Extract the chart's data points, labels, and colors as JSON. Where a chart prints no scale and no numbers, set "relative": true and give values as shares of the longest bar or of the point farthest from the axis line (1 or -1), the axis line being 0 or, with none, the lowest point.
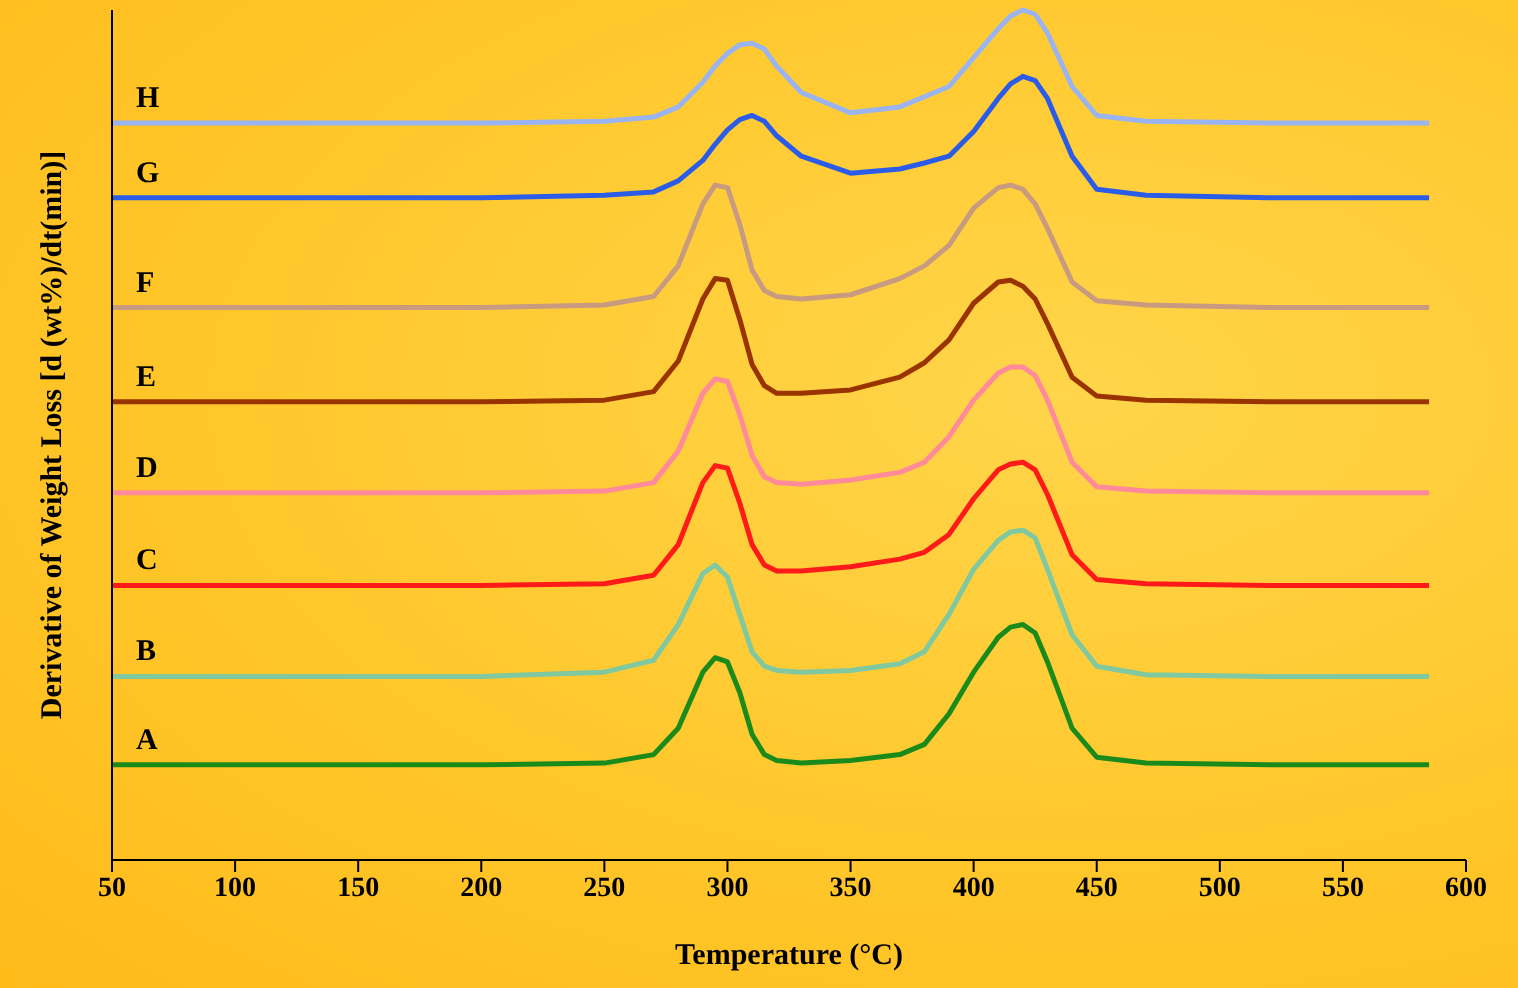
{
  "chart_data": {
    "type": "line",
    "relative": true,
    "xlabel": "Temperature (°C)",
    "ylabel": "Derivative of Weight Loss [d (wt%)/dt(min)]",
    "xlim": [
      50,
      600
    ],
    "xticks": [
      50,
      100,
      150,
      200,
      250,
      300,
      350,
      400,
      450,
      500,
      550,
      600
    ],
    "marker": "none",
    "line_style": "solid",
    "grid": false,
    "legend": false,
    "x": [
      50,
      100,
      150,
      200,
      250,
      270,
      280,
      290,
      295,
      300,
      305,
      310,
      315,
      320,
      330,
      350,
      370,
      380,
      390,
      400,
      410,
      415,
      420,
      425,
      430,
      440,
      450,
      470,
      520,
      585
    ],
    "series": [
      {
        "name": "A",
        "color": "#1a8a1a",
        "values": [
          0.112,
          0.112,
          0.112,
          0.112,
          0.114,
          0.124,
          0.155,
          0.221,
          0.238,
          0.233,
          0.197,
          0.148,
          0.124,
          0.117,
          0.114,
          0.117,
          0.124,
          0.136,
          0.172,
          0.221,
          0.262,
          0.274,
          0.277,
          0.267,
          0.233,
          0.155,
          0.121,
          0.114,
          0.112,
          0.112
        ]
      },
      {
        "name": "B",
        "color": "#7fc8a0",
        "values": [
          0.216,
          0.216,
          0.216,
          0.216,
          0.221,
          0.235,
          0.277,
          0.337,
          0.347,
          0.333,
          0.289,
          0.245,
          0.228,
          0.223,
          0.221,
          0.223,
          0.231,
          0.245,
          0.289,
          0.342,
          0.376,
          0.386,
          0.388,
          0.379,
          0.342,
          0.265,
          0.228,
          0.218,
          0.216,
          0.216
        ]
      },
      {
        "name": "C",
        "color": "#ff1a1a",
        "values": [
          0.323,
          0.323,
          0.323,
          0.323,
          0.325,
          0.335,
          0.371,
          0.444,
          0.464,
          0.461,
          0.42,
          0.371,
          0.347,
          0.34,
          0.34,
          0.345,
          0.354,
          0.362,
          0.383,
          0.425,
          0.459,
          0.466,
          0.468,
          0.459,
          0.43,
          0.359,
          0.33,
          0.325,
          0.323,
          0.323
        ]
      },
      {
        "name": "D",
        "color": "#ff8a9a",
        "values": [
          0.432,
          0.432,
          0.432,
          0.432,
          0.434,
          0.444,
          0.481,
          0.549,
          0.566,
          0.563,
          0.524,
          0.476,
          0.451,
          0.444,
          0.442,
          0.447,
          0.456,
          0.468,
          0.498,
          0.541,
          0.573,
          0.58,
          0.58,
          0.57,
          0.541,
          0.468,
          0.439,
          0.434,
          0.432,
          0.432
        ]
      },
      {
        "name": "E",
        "color": "#993300",
        "values": [
          0.539,
          0.539,
          0.539,
          0.539,
          0.541,
          0.551,
          0.587,
          0.66,
          0.684,
          0.682,
          0.636,
          0.583,
          0.558,
          0.549,
          0.549,
          0.553,
          0.568,
          0.585,
          0.612,
          0.655,
          0.68,
          0.682,
          0.675,
          0.66,
          0.631,
          0.568,
          0.546,
          0.541,
          0.539,
          0.539
        ]
      },
      {
        "name": "F",
        "color": "#c89a80",
        "values": [
          0.65,
          0.65,
          0.65,
          0.65,
          0.653,
          0.663,
          0.699,
          0.772,
          0.794,
          0.791,
          0.748,
          0.694,
          0.67,
          0.663,
          0.66,
          0.665,
          0.684,
          0.699,
          0.723,
          0.767,
          0.791,
          0.794,
          0.789,
          0.772,
          0.743,
          0.68,
          0.658,
          0.653,
          0.65,
          0.65
        ]
      },
      {
        "name": "G",
        "color": "#2a5ce8",
        "values": [
          0.779,
          0.779,
          0.779,
          0.779,
          0.782,
          0.786,
          0.799,
          0.823,
          0.842,
          0.859,
          0.871,
          0.876,
          0.869,
          0.852,
          0.828,
          0.808,
          0.813,
          0.82,
          0.828,
          0.857,
          0.896,
          0.913,
          0.922,
          0.917,
          0.896,
          0.828,
          0.789,
          0.782,
          0.779,
          0.779
        ]
      },
      {
        "name": "H",
        "color": "#99b4f0",
        "values": [
          0.867,
          0.867,
          0.867,
          0.867,
          0.869,
          0.874,
          0.886,
          0.915,
          0.934,
          0.949,
          0.959,
          0.961,
          0.954,
          0.934,
          0.903,
          0.879,
          0.886,
          0.898,
          0.91,
          0.944,
          0.978,
          0.993,
          1,
          0.995,
          0.973,
          0.91,
          0.876,
          0.869,
          0.867,
          0.867
        ]
      }
    ]
  }
}
